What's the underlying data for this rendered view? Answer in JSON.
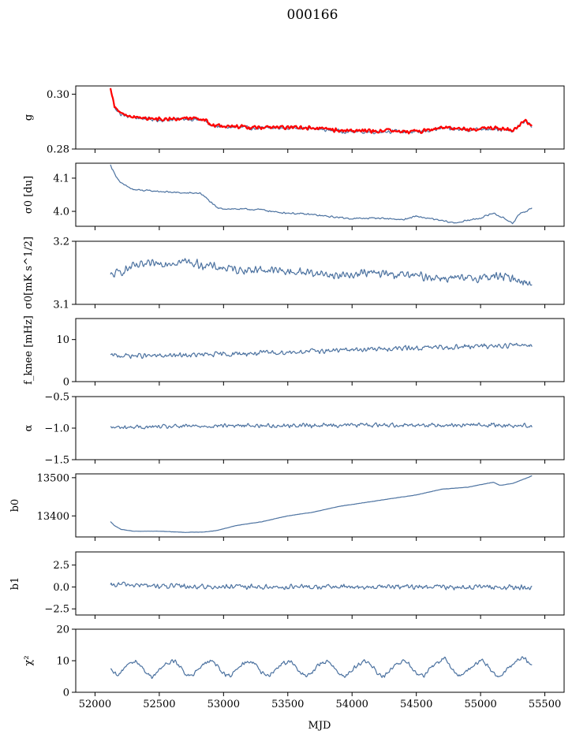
{
  "figure": {
    "title": "000166",
    "xlabel": "MJD"
  },
  "colors": {
    "primary": "#4c72a0",
    "overlay": "#ff0000"
  },
  "chart_data": [
    {
      "type": "line",
      "ylabel": "g",
      "xlim": [
        51850,
        55650
      ],
      "ylim": [
        0.28,
        0.303
      ],
      "yticks": [
        0.28,
        0.3
      ],
      "yticklabels": [
        "0.28",
        "0.30"
      ],
      "noise": 0.0008,
      "series": [
        {
          "color": "#4c72a0",
          "x": [
            52120,
            52150,
            52200,
            52300,
            52500,
            52700,
            52850,
            52900,
            53000,
            53300,
            53600,
            53900,
            54100,
            54300,
            54500,
            54700,
            54900,
            55100,
            55250,
            55350,
            55400
          ],
          "y": [
            0.302,
            0.2955,
            0.2925,
            0.2915,
            0.2905,
            0.291,
            0.2905,
            0.2885,
            0.288,
            0.2875,
            0.2878,
            0.2865,
            0.2862,
            0.2865,
            0.286,
            0.2875,
            0.287,
            0.2875,
            0.2865,
            0.2905,
            0.288
          ]
        },
        {
          "color": "#ff0000",
          "x": [
            52120,
            52150,
            52200,
            52300,
            52500,
            52700,
            52850,
            52900,
            53000,
            53300,
            53600,
            53900,
            54100,
            54300,
            54500,
            54700,
            54900,
            55100,
            55250,
            55350,
            55400
          ],
          "y": [
            0.302,
            0.2958,
            0.2928,
            0.2918,
            0.2908,
            0.2912,
            0.2908,
            0.2888,
            0.2882,
            0.2878,
            0.288,
            0.2868,
            0.2865,
            0.2868,
            0.2862,
            0.2878,
            0.2872,
            0.2878,
            0.2868,
            0.2905,
            0.2885
          ]
        }
      ]
    },
    {
      "type": "line",
      "ylabel": "σ0 [du]",
      "xlim": [
        51850,
        55650
      ],
      "ylim": [
        3.955,
        4.145
      ],
      "yticks": [
        4.0,
        4.1
      ],
      "yticklabels": [
        "4.0",
        "4.1"
      ],
      "noise": 0.003,
      "series": [
        {
          "color": "#4c72a0",
          "x": [
            52120,
            52150,
            52200,
            52300,
            52500,
            52700,
            52820,
            52880,
            52950,
            53000,
            53300,
            53400,
            53500,
            53700,
            53800,
            54000,
            54200,
            54400,
            54500,
            54800,
            55000,
            55100,
            55150,
            55250,
            55300,
            55400
          ],
          "y": [
            4.14,
            4.115,
            4.085,
            4.065,
            4.06,
            4.055,
            4.055,
            4.035,
            4.01,
            4.008,
            4.005,
            3.998,
            3.995,
            3.99,
            3.985,
            3.978,
            3.98,
            3.975,
            3.985,
            3.965,
            3.98,
            3.995,
            3.985,
            3.965,
            3.99,
            4.01
          ]
        }
      ]
    },
    {
      "type": "line",
      "ylabel": "σ0[mK s^1/2]",
      "xlim": [
        51850,
        55650
      ],
      "ylim": [
        3.1,
        3.2
      ],
      "yticks": [
        3.1,
        3.2
      ],
      "yticklabels": [
        "3.1",
        "3.2"
      ],
      "noise": 0.008,
      "series": [
        {
          "color": "#4c72a0",
          "x": [
            52120,
            52300,
            52500,
            52700,
            52900,
            53100,
            53300,
            53500,
            53700,
            53900,
            54100,
            54300,
            54500,
            54700,
            54900,
            55100,
            55300,
            55400
          ],
          "y": [
            3.145,
            3.16,
            3.165,
            3.168,
            3.16,
            3.155,
            3.155,
            3.152,
            3.15,
            3.145,
            3.15,
            3.148,
            3.145,
            3.142,
            3.14,
            3.145,
            3.14,
            3.13
          ]
        }
      ]
    },
    {
      "type": "line",
      "ylabel": "f_knee [mHz]",
      "xlim": [
        51850,
        55650
      ],
      "ylim": [
        0,
        15
      ],
      "yticks": [
        0,
        10
      ],
      "yticklabels": [
        "0",
        "10"
      ],
      "noise": 0.7,
      "series": [
        {
          "color": "#4c72a0",
          "x": [
            52120,
            52500,
            53000,
            53500,
            54000,
            54500,
            55000,
            55400
          ],
          "y": [
            6.2,
            6.1,
            6.5,
            7.0,
            7.6,
            8.0,
            8.4,
            8.8
          ]
        }
      ]
    },
    {
      "type": "line",
      "ylabel": "α",
      "xlim": [
        51850,
        55650
      ],
      "ylim": [
        -1.5,
        -0.5
      ],
      "yticks": [
        -1.5,
        -1.0,
        -0.5
      ],
      "yticklabels": [
        "−1.5",
        "−1.0",
        "−0.5"
      ],
      "noise": 0.04,
      "series": [
        {
          "color": "#4c72a0",
          "x": [
            52120,
            52500,
            53000,
            53500,
            54000,
            54500,
            55000,
            55400
          ],
          "y": [
            -0.99,
            -0.98,
            -0.96,
            -0.96,
            -0.95,
            -0.95,
            -0.95,
            -0.96
          ]
        }
      ]
    },
    {
      "type": "line",
      "ylabel": "b0",
      "xlim": [
        51850,
        55650
      ],
      "ylim": [
        13345,
        13510
      ],
      "yticks": [
        13400,
        13500
      ],
      "yticklabels": [
        "13400",
        "13500"
      ],
      "noise": 0.4,
      "series": [
        {
          "color": "#4c72a0",
          "x": [
            52120,
            52150,
            52200,
            52300,
            52500,
            52700,
            52850,
            52950,
            53100,
            53300,
            53500,
            53700,
            53900,
            54100,
            54300,
            54500,
            54700,
            54900,
            55050,
            55100,
            55150,
            55250,
            55350,
            55400
          ],
          "y": [
            13385,
            13375,
            13365,
            13360,
            13360,
            13357,
            13358,
            13362,
            13375,
            13385,
            13400,
            13410,
            13425,
            13435,
            13445,
            13455,
            13470,
            13475,
            13485,
            13488,
            13480,
            13485,
            13498,
            13505
          ]
        }
      ]
    },
    {
      "type": "line",
      "ylabel": "b1",
      "xlim": [
        51850,
        55650
      ],
      "ylim": [
        -3.2,
        4.0
      ],
      "yticks": [
        -2.5,
        0.0,
        2.5
      ],
      "yticklabels": [
        "−2.5",
        "0.0",
        "2.5"
      ],
      "noise": 0.35,
      "series": [
        {
          "color": "#4c72a0",
          "x": [
            52120,
            52200,
            52500,
            53000,
            53500,
            54000,
            54500,
            55000,
            55400
          ],
          "y": [
            0.1,
            0.3,
            0.1,
            0.0,
            0.0,
            0.0,
            0.0,
            0.0,
            -0.1
          ]
        }
      ]
    },
    {
      "type": "line",
      "ylabel": "χ²",
      "xlim": [
        51850,
        55650
      ],
      "ylim": [
        0,
        20
      ],
      "yticks": [
        0,
        10,
        20
      ],
      "yticklabels": [
        "0",
        "10",
        "20"
      ],
      "noise": 0.8,
      "series": [
        {
          "color": "#4c72a0",
          "x": [
            52120,
            52180,
            52250,
            52320,
            52400,
            52450,
            52550,
            52620,
            52700,
            52750,
            52850,
            52920,
            53000,
            53050,
            53150,
            53220,
            53300,
            53350,
            53450,
            53520,
            53600,
            53650,
            53750,
            53820,
            53900,
            53950,
            54050,
            54120,
            54200,
            54250,
            54350,
            54420,
            54500,
            54550,
            54650,
            54720,
            54800,
            54850,
            54950,
            55020,
            55100,
            55150,
            55250,
            55320,
            55400
          ],
          "y": [
            7,
            5,
            9,
            10,
            6,
            5,
            9,
            10,
            6,
            5,
            9,
            10,
            6,
            5,
            9,
            10,
            6,
            5,
            9,
            10,
            6,
            5,
            9,
            10,
            6,
            5,
            9,
            10,
            6,
            5,
            9,
            10,
            6,
            5,
            9,
            11,
            6,
            5,
            9,
            10,
            6,
            5,
            9,
            11,
            9
          ]
        }
      ]
    }
  ],
  "xaxis": {
    "ticks": [
      52000,
      52500,
      53000,
      53500,
      54000,
      54500,
      55000,
      55500
    ],
    "ticklabels": [
      "52000",
      "52500",
      "53000",
      "53500",
      "54000",
      "54500",
      "55000",
      "55500"
    ]
  }
}
